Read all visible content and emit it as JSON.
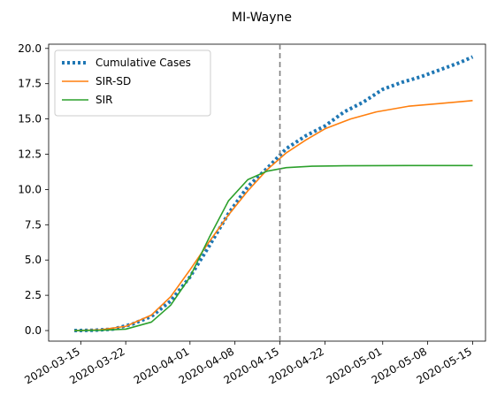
{
  "chart_data": {
    "type": "line",
    "title": "MI-Wayne",
    "xlabel": "",
    "ylabel": "",
    "x_start": "2020-03-14",
    "x_end": "2020-05-14",
    "xlim": [
      "2020-03-10",
      "2020-05-17"
    ],
    "ylim": [
      -0.75,
      20.3
    ],
    "yticks": [
      0.0,
      2.5,
      5.0,
      7.5,
      10.0,
      12.5,
      15.0,
      17.5,
      20.0
    ],
    "ytick_labels": [
      "0.0",
      "2.5",
      "5.0",
      "7.5",
      "10.0",
      "12.5",
      "15.0",
      "17.5",
      "20.0"
    ],
    "xticks": [
      "2020-03-15",
      "2020-03-22",
      "2020-04-01",
      "2020-04-08",
      "2020-04-15",
      "2020-04-22",
      "2020-05-01",
      "2020-05-08",
      "2020-05-15"
    ],
    "vline": "2020-04-15",
    "grid": false,
    "legend_position": "top-left",
    "series": [
      {
        "name": "Cumulative Cases",
        "style": "dotted",
        "color": "#1f77b4",
        "points": [
          [
            "2020-03-14",
            0.0
          ],
          [
            "2020-03-17",
            0.02
          ],
          [
            "2020-03-20",
            0.1
          ],
          [
            "2020-03-23",
            0.45
          ],
          [
            "2020-03-26",
            1.0
          ],
          [
            "2020-03-29",
            2.1
          ],
          [
            "2020-04-01",
            3.8
          ],
          [
            "2020-04-04",
            6.0
          ],
          [
            "2020-04-07",
            8.3
          ],
          [
            "2020-04-10",
            10.2
          ],
          [
            "2020-04-13",
            11.5
          ],
          [
            "2020-04-16",
            12.9
          ],
          [
            "2020-04-19",
            13.8
          ],
          [
            "2020-04-22",
            14.5
          ],
          [
            "2020-04-25",
            15.5
          ],
          [
            "2020-04-28",
            16.2
          ],
          [
            "2020-05-01",
            17.1
          ],
          [
            "2020-05-04",
            17.6
          ],
          [
            "2020-05-07",
            18.0
          ],
          [
            "2020-05-10",
            18.5
          ],
          [
            "2020-05-13",
            19.0
          ],
          [
            "2020-05-15",
            19.4
          ]
        ]
      },
      {
        "name": "SIR-SD",
        "style": "solid",
        "color": "#ff7f0e",
        "points": [
          [
            "2020-03-14",
            0.0
          ],
          [
            "2020-03-18",
            0.05
          ],
          [
            "2020-03-22",
            0.3
          ],
          [
            "2020-03-26",
            1.1
          ],
          [
            "2020-03-29",
            2.4
          ],
          [
            "2020-04-01",
            4.3
          ],
          [
            "2020-04-04",
            6.3
          ],
          [
            "2020-04-07",
            8.2
          ],
          [
            "2020-04-10",
            9.9
          ],
          [
            "2020-04-13",
            11.4
          ],
          [
            "2020-04-16",
            12.6
          ],
          [
            "2020-04-19",
            13.5
          ],
          [
            "2020-04-22",
            14.3
          ],
          [
            "2020-04-26",
            15.0
          ],
          [
            "2020-04-30",
            15.5
          ],
          [
            "2020-05-05",
            15.9
          ],
          [
            "2020-05-10",
            16.1
          ],
          [
            "2020-05-15",
            16.3
          ]
        ]
      },
      {
        "name": "SIR",
        "style": "solid",
        "color": "#2ca02c",
        "points": [
          [
            "2020-03-14",
            0.0
          ],
          [
            "2020-03-18",
            0.02
          ],
          [
            "2020-03-22",
            0.1
          ],
          [
            "2020-03-26",
            0.6
          ],
          [
            "2020-03-29",
            1.8
          ],
          [
            "2020-04-01",
            3.8
          ],
          [
            "2020-04-04",
            6.6
          ],
          [
            "2020-04-07",
            9.2
          ],
          [
            "2020-04-10",
            10.7
          ],
          [
            "2020-04-13",
            11.3
          ],
          [
            "2020-04-16",
            11.55
          ],
          [
            "2020-04-20",
            11.65
          ],
          [
            "2020-04-25",
            11.68
          ],
          [
            "2020-05-05",
            11.7
          ],
          [
            "2020-05-15",
            11.7
          ]
        ]
      }
    ]
  }
}
